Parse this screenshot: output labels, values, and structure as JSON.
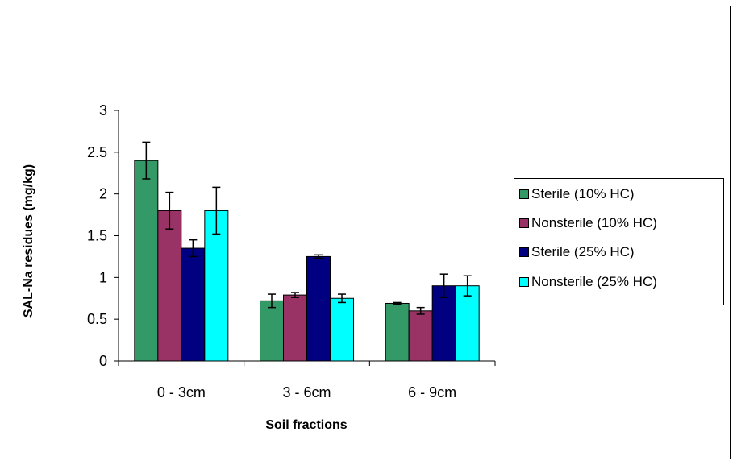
{
  "chart_data": {
    "type": "bar",
    "xlabel": "Soil fractions",
    "ylabel": "SAL-Na residues (mg/kg)",
    "categories": [
      "0 - 3cm",
      "3 - 6cm",
      "6 - 9cm"
    ],
    "ylim": [
      0,
      3
    ],
    "yticks": [
      "0",
      "0.5",
      "1",
      "1.5",
      "2",
      "2.5",
      "3"
    ],
    "grid": false,
    "legend_position": "right",
    "series": [
      {
        "name": "Sterile (10% HC)",
        "color": "#339966",
        "values": [
          2.4,
          0.72,
          0.69
        ],
        "errors": [
          0.22,
          0.08,
          0.01
        ]
      },
      {
        "name": "Nonsterile (10% HC)",
        "color": "#993366",
        "values": [
          1.8,
          0.79,
          0.6
        ],
        "errors": [
          0.22,
          0.03,
          0.04
        ]
      },
      {
        "name": "Sterile (25% HC)",
        "color": "#000080",
        "values": [
          1.35,
          1.25,
          0.9
        ],
        "errors": [
          0.1,
          0.02,
          0.14
        ]
      },
      {
        "name": "Nonsterile (25% HC)",
        "color": "#00FFFF",
        "values": [
          1.8,
          0.75,
          0.9
        ],
        "errors": [
          0.28,
          0.05,
          0.12
        ]
      }
    ]
  }
}
